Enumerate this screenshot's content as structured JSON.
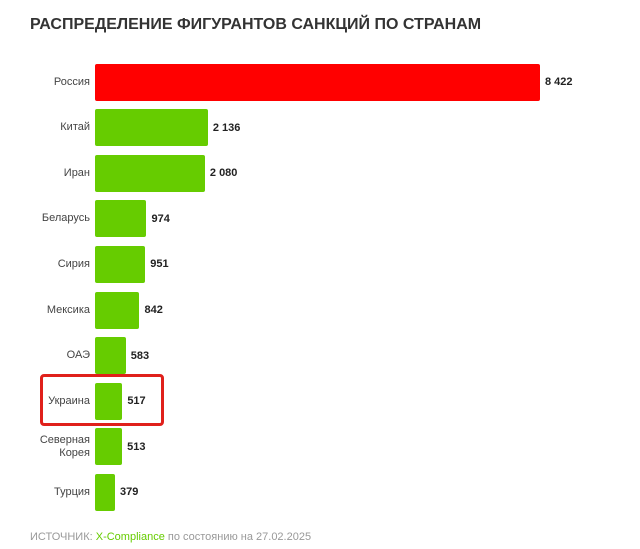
{
  "chart_data": {
    "type": "bar",
    "orientation": "horizontal",
    "title": "РАСПРЕДЕЛЕНИЕ ФИГУРАНТОВ САНКЦИЙ ПО СТРАНАМ",
    "categories": [
      "Россия",
      "Китай",
      "Иран",
      "Беларусь",
      "Сирия",
      "Мексика",
      "ОАЭ",
      "Украина",
      "Северная Корея",
      "Турция"
    ],
    "values": [
      8422,
      2136,
      2080,
      974,
      951,
      842,
      583,
      517,
      513,
      379
    ],
    "value_labels": [
      "8 422",
      "2 136",
      "2 080",
      "974",
      "951",
      "842",
      "583",
      "517",
      "513",
      "379"
    ],
    "colors": [
      "#ff0000",
      "#66cc00",
      "#66cc00",
      "#66cc00",
      "#66cc00",
      "#66cc00",
      "#66cc00",
      "#66cc00",
      "#66cc00",
      "#66cc00"
    ],
    "highlight_index": 7,
    "highlight_color": "#e0201b",
    "source_label": "ИСТОЧНИК:",
    "source_name": "X-Compliance",
    "source_date": "по состоянию на 27.02.2025"
  }
}
